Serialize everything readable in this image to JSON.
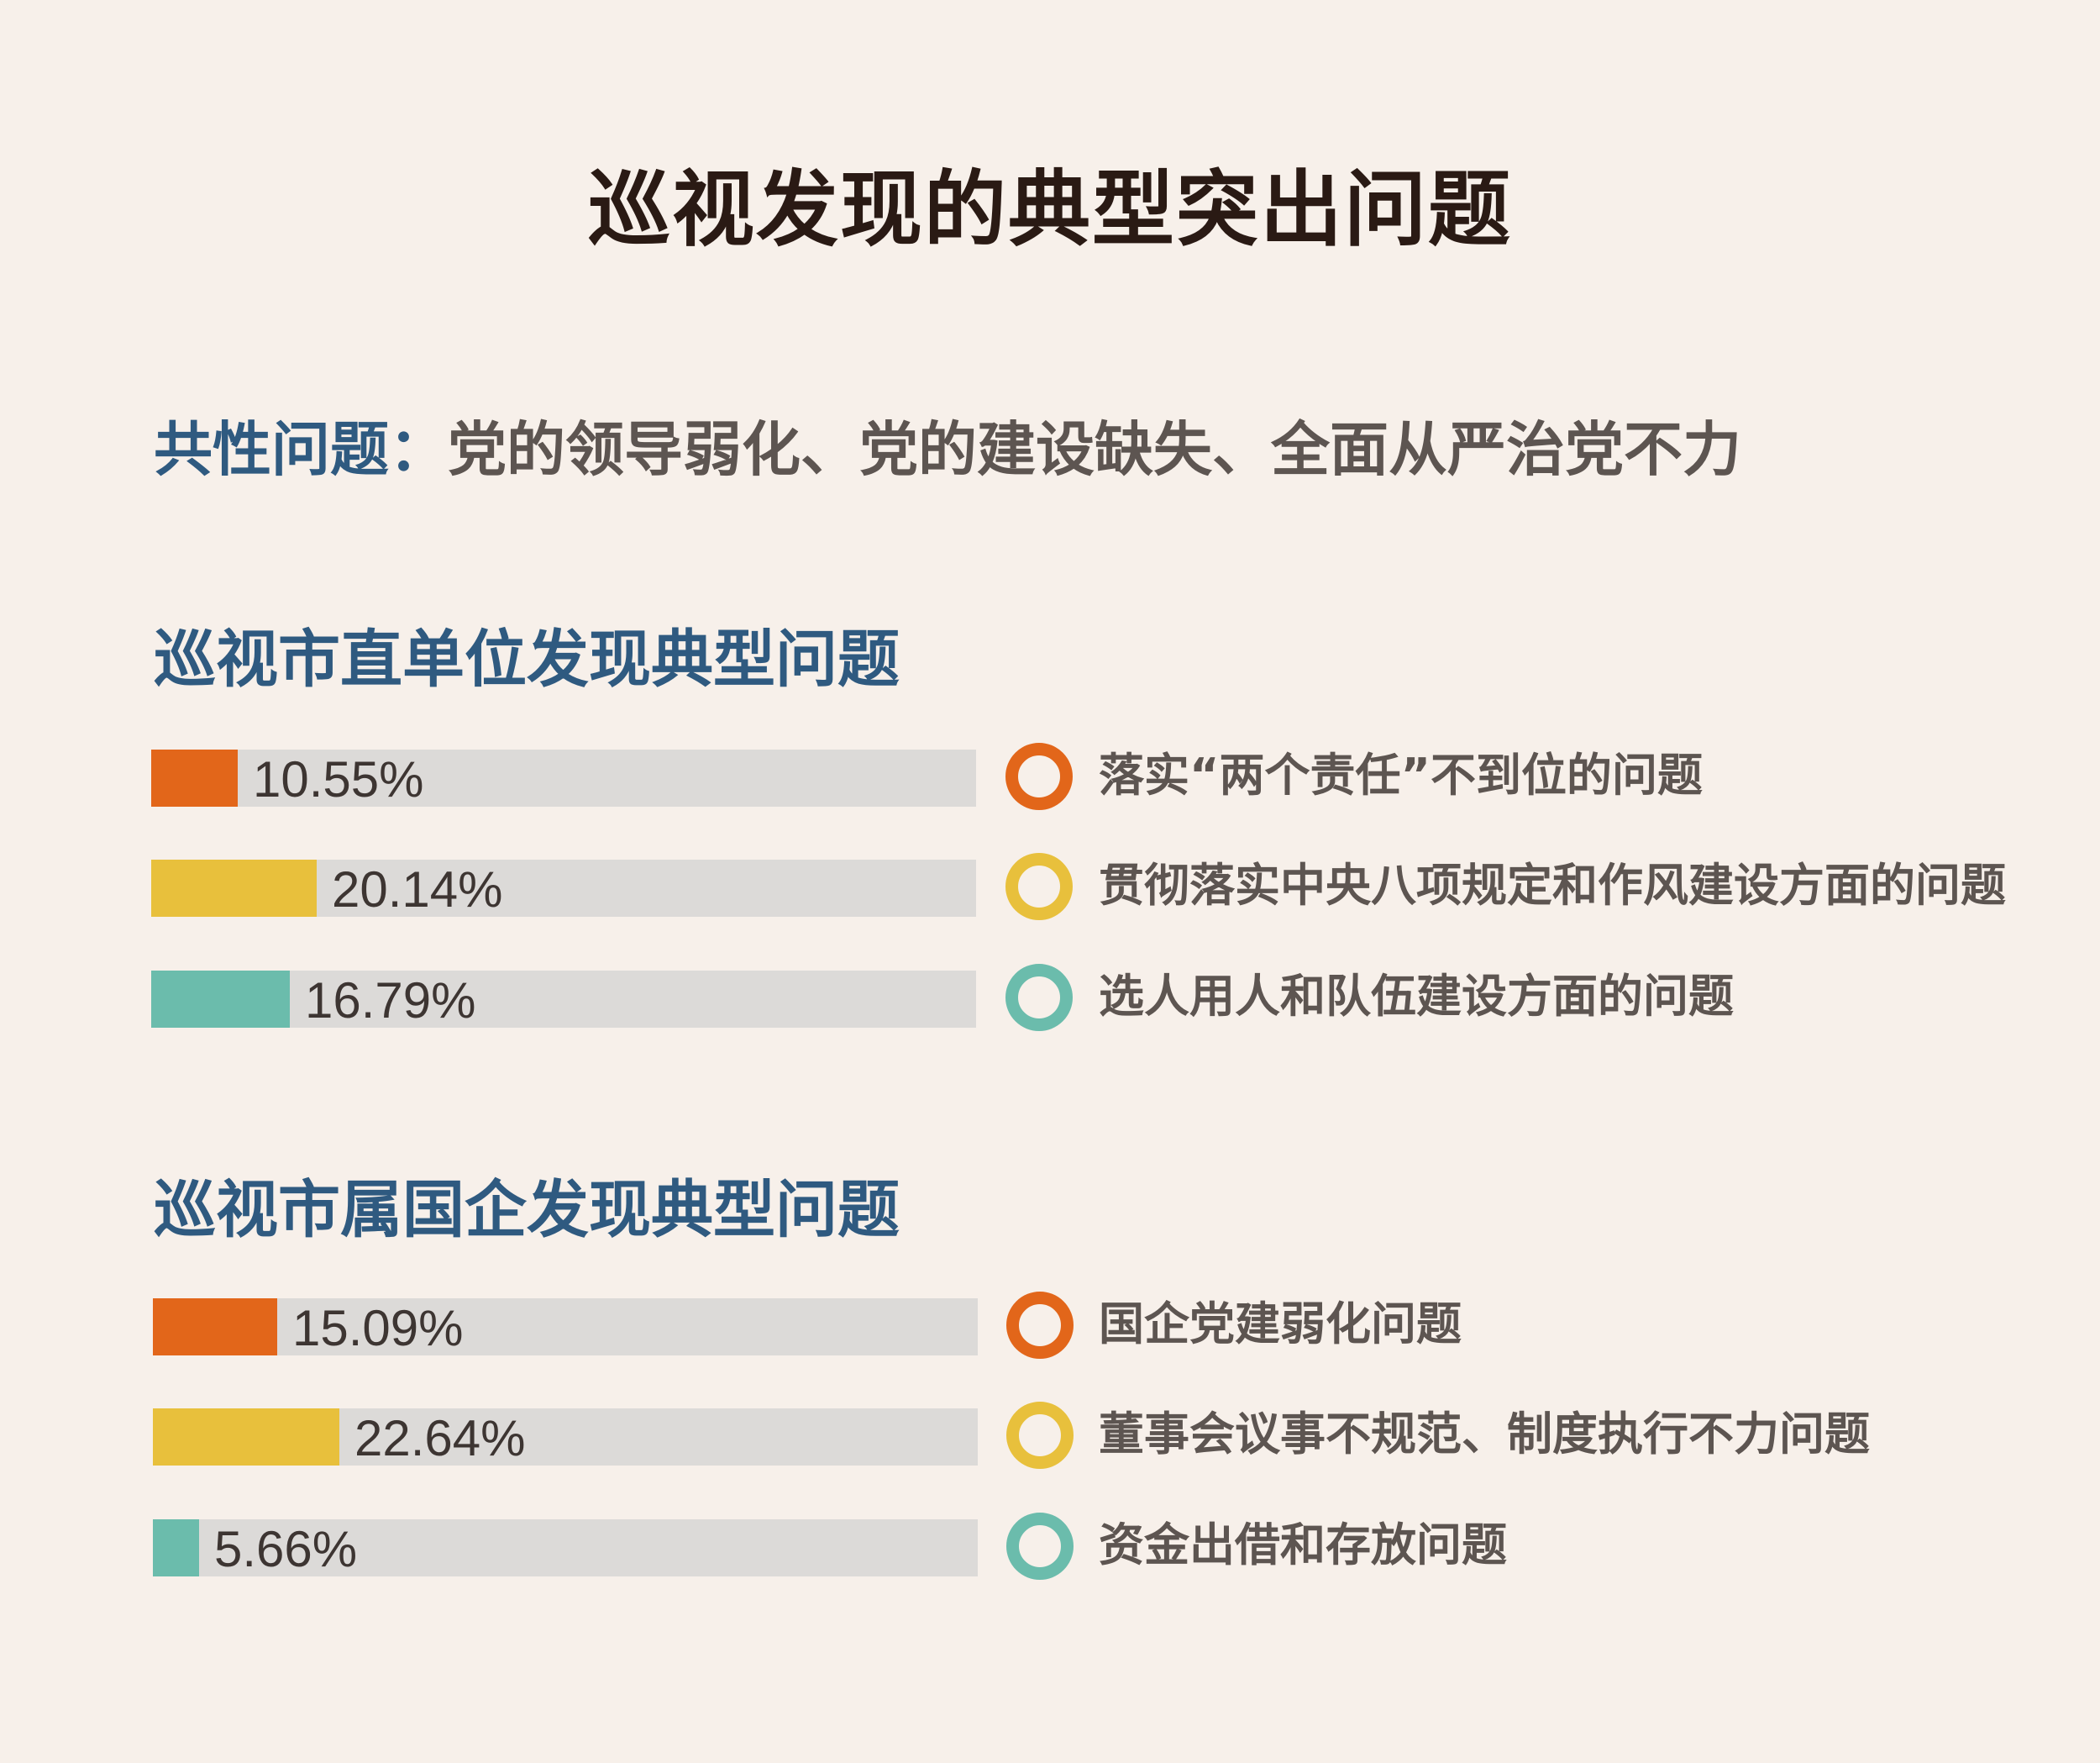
{
  "title": "巡视发现的典型突出问题",
  "common": {
    "label": "共性问题：",
    "text": "党的领导弱化、党的建设缺失、全面从严治党不力"
  },
  "chart_data": [
    {
      "type": "bar",
      "title": "巡视市直单位发现典型问题",
      "xlim": [
        0,
        100
      ],
      "categories": [
        "落实“两个责任”不到位的问题",
        "贯彻落实中央八项规定和作风建设方面的问题",
        "选人用人和队伍建设方面的问题"
      ],
      "values": [
        10.55,
        20.14,
        16.79
      ],
      "value_labels": [
        "10.55%",
        "20.14%",
        "16.79%"
      ],
      "colors": [
        "#e2661a",
        "#e8c03c",
        "#6bbcac"
      ]
    },
    {
      "type": "bar",
      "title": "巡视市属国企发现典型问题",
      "xlim": [
        0,
        100
      ],
      "categories": [
        "国企党建弱化问题",
        "董事会议事不规范、制度执行不力问题",
        "资金出借和存放问题"
      ],
      "values": [
        15.09,
        22.64,
        5.66
      ],
      "value_labels": [
        "15.09%",
        "22.64%",
        "5.66%"
      ],
      "colors": [
        "#e2661a",
        "#e8c03c",
        "#6bbcac"
      ]
    }
  ]
}
